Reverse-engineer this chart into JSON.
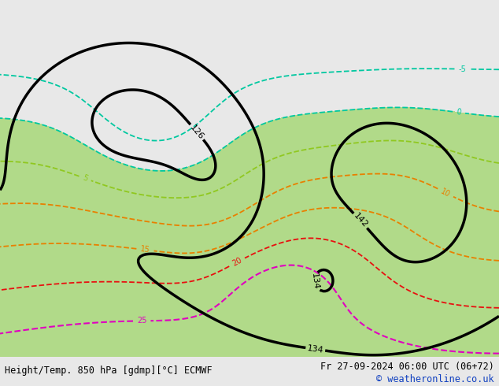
{
  "footer_left": "Height/Temp. 850 hPa [gdmp][°C] ECMWF",
  "footer_right": "Fr 27-09-2024 06:00 UTC (06+72)",
  "footer_credit": "© weatheronline.co.uk",
  "bg_color": "#e8e8e8",
  "land_color": "#d4d4d4",
  "ocean_color": "#e8e8e8",
  "green_fill": "#a8d878",
  "gray_fill": "#b4b4b4",
  "black": "#000000",
  "cyan": "#00c8a0",
  "orange": "#e88000",
  "red": "#e81010",
  "magenta": "#e000c0",
  "yellow_green": "#90c820",
  "credit_color": "#1040c0",
  "footer_fontsize": 8.5,
  "lonmin": -175,
  "lonmax": -45,
  "latmin": 8,
  "latmax": 82
}
